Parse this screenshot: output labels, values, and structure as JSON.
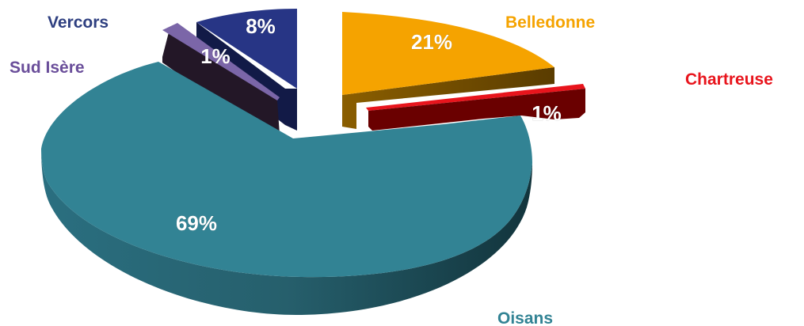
{
  "chart_data": {
    "type": "pie",
    "style": "3d-exploded",
    "title": "",
    "slices": [
      {
        "label": "Belledonne",
        "value": 21,
        "display": "21%",
        "color": "#F5A300",
        "side_color": "#6B4A00",
        "label_color": "#F5A300"
      },
      {
        "label": "Chartreuse",
        "value": 1,
        "display": "1%",
        "color": "#E8141C",
        "side_color": "#6A0000",
        "label_color": "#E8141C"
      },
      {
        "label": "Oisans",
        "value": 69,
        "display": "69%",
        "color": "#328394",
        "side_color": "#1C4F5A",
        "label_color": "#328394"
      },
      {
        "label": "Sud Isère",
        "value": 1,
        "display": "1%",
        "color": "#7B66A8",
        "side_color": "#231727",
        "label_color": "#6A4E9A"
      },
      {
        "label": "Vercors",
        "value": 8,
        "display": "8%",
        "color": "#273585",
        "side_color": "#121A47",
        "label_color": "#2E3F80"
      }
    ]
  }
}
